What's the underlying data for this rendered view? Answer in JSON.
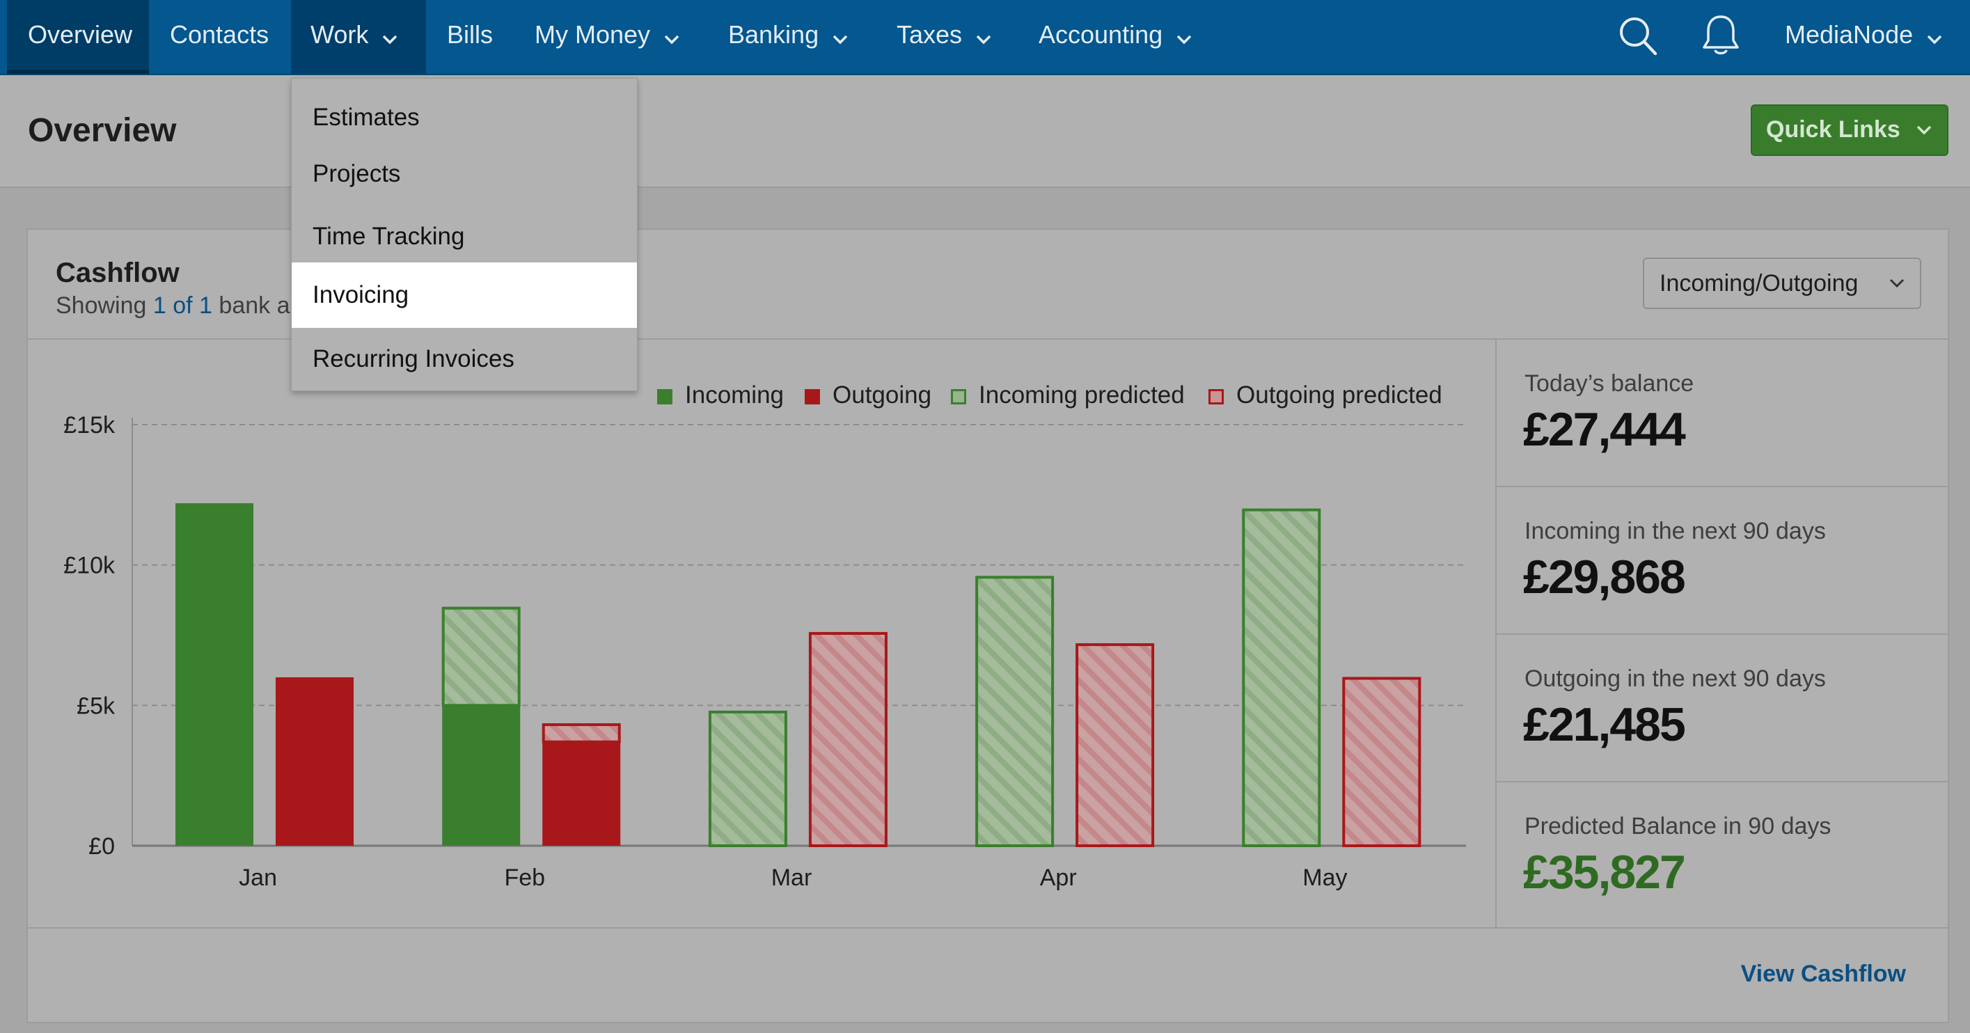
{
  "nav": {
    "items": [
      {
        "label": "Overview"
      },
      {
        "label": "Contacts"
      },
      {
        "label": "Work"
      },
      {
        "label": "Bills"
      },
      {
        "label": "My Money"
      },
      {
        "label": "Banking"
      },
      {
        "label": "Taxes"
      },
      {
        "label": "Accounting"
      }
    ],
    "account": "MediaNode"
  },
  "header": {
    "title": "Overview",
    "quick_links": "Quick Links"
  },
  "work_menu": {
    "items": [
      "Estimates",
      "Projects",
      "Time Tracking",
      "Invoicing",
      "Recurring Invoices"
    ],
    "hovered": "Invoicing"
  },
  "cashflow": {
    "title": "Cashflow",
    "sub_showing": "Showing",
    "sub_count": "1 of 1",
    "sub_rest": "bank a",
    "view_select": "Incoming/Outgoing",
    "view_link": "View Cashflow"
  },
  "stats": [
    {
      "label": "Today’s balance",
      "value": "£27,444"
    },
    {
      "label": "Incoming in the next 90 days",
      "value": "£29,868"
    },
    {
      "label": "Outgoing in the next 90 days",
      "value": "£21,485"
    },
    {
      "label": "Predicted Balance in 90 days",
      "value": "£35,827"
    }
  ],
  "colors": {
    "incoming": "#3a7f2d",
    "outgoing": "#a8181a",
    "incoming_predicted_fill": "#98b48f",
    "outgoing_predicted_fill": "#c79596",
    "nav_bg": "#04578f"
  },
  "chart_data": {
    "type": "bar",
    "title": "Cashflow",
    "categories": [
      "Jan",
      "Feb",
      "Mar",
      "Apr",
      "May"
    ],
    "yticks": [
      "£0",
      "£5k",
      "£10k",
      "£15k"
    ],
    "ylim": [
      0,
      15000
    ],
    "legend": [
      "Incoming",
      "Outgoing",
      "Incoming predicted",
      "Outgoing predicted"
    ],
    "series": [
      {
        "name": "Incoming",
        "values": [
          12200,
          5000,
          0,
          0,
          0
        ]
      },
      {
        "name": "Outgoing",
        "values": [
          6000,
          3700,
          0,
          0,
          0
        ]
      },
      {
        "name": "Incoming predicted",
        "values": [
          0,
          3500,
          4800,
          9600,
          12000
        ]
      },
      {
        "name": "Outgoing predicted",
        "values": [
          0,
          650,
          7600,
          7200,
          6000
        ]
      }
    ]
  }
}
